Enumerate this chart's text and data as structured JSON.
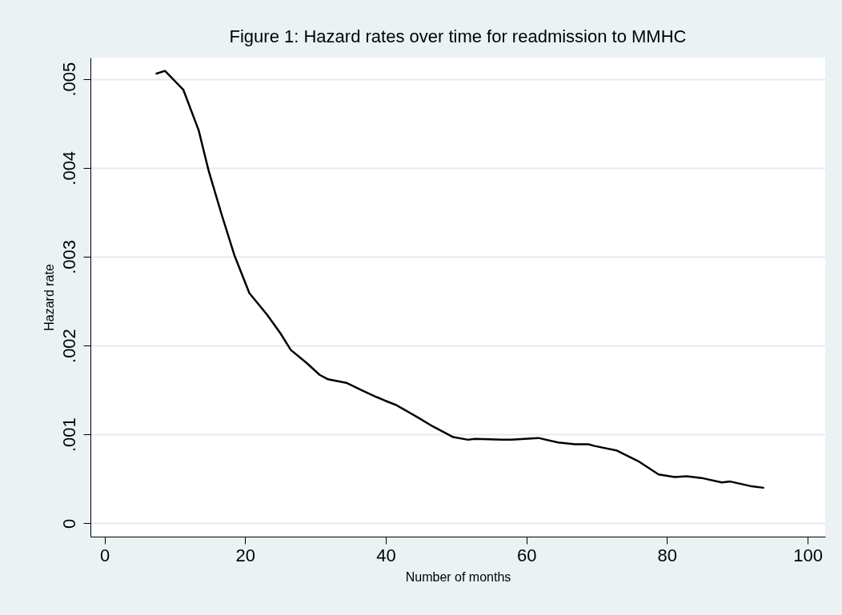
{
  "chart_data": {
    "type": "line",
    "title": "Figure 1: Hazard rates over time for readmission to MMHC",
    "xlabel": "Number of months",
    "ylabel": "Hazard rate",
    "x": [
      7.4,
      8.6,
      11.2,
      13.4,
      14.8,
      16.6,
      18.5,
      20.6,
      23.1,
      25,
      26.5,
      28.8,
      30.6,
      31.8,
      34.4,
      36.5,
      38.7,
      39.9,
      41.5,
      44.6,
      46.7,
      49.6,
      51.7,
      52.7,
      56.5,
      57.9,
      61.7,
      64.5,
      66.9,
      68.8,
      69.7,
      72.8,
      75.9,
      78.8,
      81.1,
      82.8,
      84.9,
      87.8,
      89.0,
      91.8,
      93.7
    ],
    "series": [
      {
        "color": "#000000",
        "values": [
          0.00506,
          0.00509,
          0.00488,
          0.00442,
          0.00397,
          0.00349,
          0.00301,
          0.00259,
          0.00235,
          0.00214,
          0.00195,
          0.0018,
          0.00167,
          0.00162,
          0.00158,
          0.0015,
          0.00142,
          0.00138,
          0.00133,
          0.00119,
          0.00109,
          0.00097,
          0.00094,
          0.00095,
          0.00094,
          0.00094,
          0.00096,
          0.00091,
          0.00089,
          0.00089,
          0.00087,
          0.00082,
          0.0007,
          0.00055,
          0.00052,
          0.00053,
          0.00051,
          0.00046,
          0.00047,
          0.00042,
          0.0004
        ]
      }
    ],
    "xlim": [
      -2,
      102.5
    ],
    "xticks": [
      0,
      20,
      40,
      60,
      80,
      100
    ],
    "ylim": [
      -0.00015,
      0.00524
    ],
    "yticks": [
      0,
      {
        "value": 0.001,
        "label": ".001"
      },
      {
        "value": 0.002,
        "label": ".002"
      },
      {
        "value": 0.003,
        "label": ".003"
      },
      {
        "value": 0.004,
        "label": ".004"
      },
      {
        "value": 0.005,
        "label": ".005"
      }
    ],
    "grid": "y",
    "line_style": "solid"
  }
}
